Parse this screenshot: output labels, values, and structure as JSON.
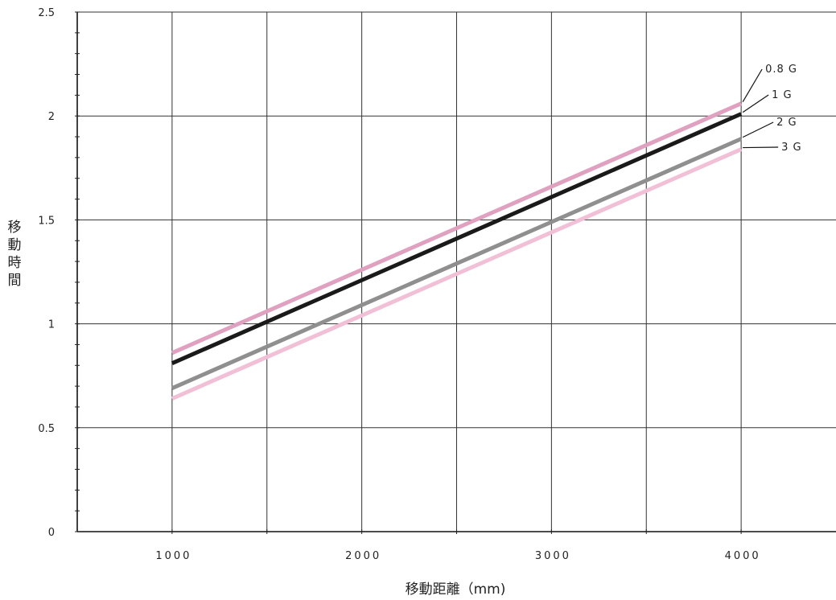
{
  "chart_data": {
    "type": "line",
    "xlabel": "移動距離（mm)",
    "ylabel": "移動時間",
    "xlim": [
      500,
      4500
    ],
    "ylim": [
      0,
      2.5
    ],
    "x_ticks": [
      1000,
      2000,
      3000,
      4000
    ],
    "y_ticks": [
      0,
      0.5,
      1,
      1.5,
      2,
      2.5
    ],
    "y_tick_labels": [
      "0",
      "0.5",
      "1",
      "1.5",
      "2",
      "2.5"
    ],
    "grid": true,
    "x": [
      1000,
      4000
    ],
    "series": [
      {
        "name": "0.8 G",
        "values": [
          0.86,
          2.06
        ],
        "color": "#e0a0c0"
      },
      {
        "name": "1 G",
        "values": [
          0.81,
          2.01
        ],
        "color": "#1a1a1a"
      },
      {
        "name": "2 G",
        "values": [
          0.69,
          1.89
        ],
        "color": "#8f8f8f"
      },
      {
        "name": "3 G",
        "values": [
          0.64,
          1.84
        ],
        "color": "#f2c0d6"
      }
    ]
  }
}
